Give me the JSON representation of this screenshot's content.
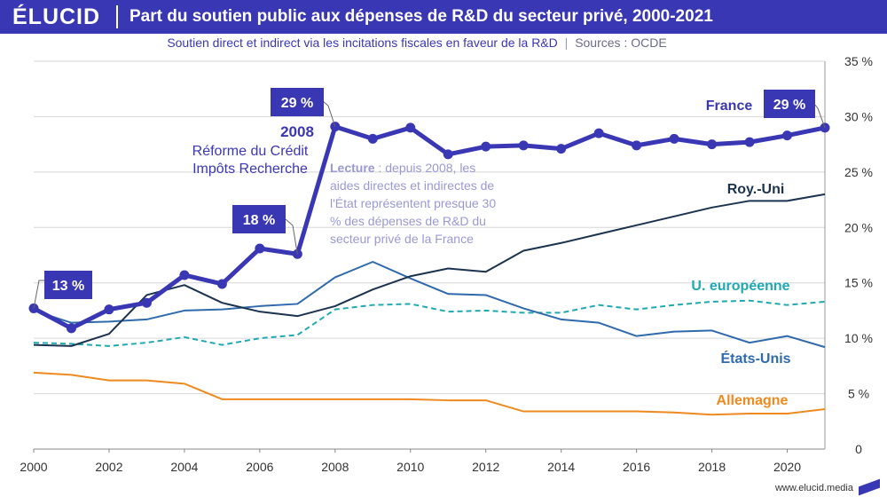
{
  "brand": {
    "logo_text": "ÉLUCID",
    "footer_url": "www.elucid.media",
    "accent": "#3a37b5"
  },
  "header": {
    "title": "Part du soutien public aux dépenses de R&D du secteur privé, 2000-2021",
    "subtitle": "Soutien direct et indirect via les incitations fiscales en faveur de la R&D",
    "separator": "|",
    "source": "Sources : OCDE"
  },
  "chart_data": {
    "type": "line",
    "title": "Part du soutien public aux dépenses de R&D du secteur privé, 2000-2021",
    "xlabel": "",
    "ylabel": "",
    "xlim": [
      2000,
      2021
    ],
    "ylim": [
      0,
      35
    ],
    "x_ticks": [
      "2000",
      "2002",
      "2004",
      "2006",
      "2008",
      "2010",
      "2012",
      "2014",
      "2016",
      "2018",
      "2020"
    ],
    "y_ticks": [
      "0",
      "5 %",
      "10 %",
      "15 %",
      "20 %",
      "25 %",
      "30 %",
      "35 %"
    ],
    "x": [
      2000,
      2001,
      2002,
      2003,
      2004,
      2005,
      2006,
      2007,
      2008,
      2009,
      2010,
      2011,
      2012,
      2013,
      2014,
      2015,
      2016,
      2017,
      2018,
      2019,
      2020,
      2021
    ],
    "series": [
      {
        "name": "France",
        "color": "#3a37b5",
        "style": "bold-markers",
        "values": [
          12.7,
          10.9,
          12.6,
          13.2,
          15.7,
          14.9,
          18.1,
          17.6,
          29.1,
          28.0,
          29.0,
          26.6,
          27.3,
          27.4,
          27.1,
          28.5,
          27.4,
          28.0,
          27.5,
          27.7,
          28.3,
          29.0
        ]
      },
      {
        "name": "Roy.-Uni",
        "color": "#1c3350",
        "style": "solid",
        "values": [
          9.4,
          9.3,
          10.4,
          13.9,
          14.8,
          13.2,
          12.4,
          12.0,
          12.9,
          14.4,
          15.6,
          16.3,
          16.0,
          17.9,
          18.6,
          19.4,
          20.2,
          21.0,
          21.8,
          22.4,
          22.4,
          23.0
        ]
      },
      {
        "name": "États-Unis",
        "color": "#2f6aad",
        "style": "solid",
        "values": [
          12.5,
          11.4,
          11.5,
          11.7,
          12.5,
          12.6,
          12.9,
          13.1,
          15.5,
          16.9,
          15.4,
          14.0,
          13.9,
          12.7,
          11.7,
          11.4,
          10.2,
          10.6,
          10.7,
          9.6,
          10.2,
          9.2
        ]
      },
      {
        "name": "U. européenne",
        "color": "#1fa9b5",
        "style": "dashed",
        "values": [
          9.6,
          9.5,
          9.3,
          9.6,
          10.1,
          9.4,
          10.0,
          10.3,
          12.6,
          13.0,
          13.1,
          12.4,
          12.5,
          12.3,
          12.3,
          13.0,
          12.6,
          13.0,
          13.3,
          13.4,
          13.0,
          13.3
        ]
      },
      {
        "name": "Allemagne",
        "color": "#ee8a1f",
        "style": "solid",
        "values": [
          6.9,
          6.7,
          6.2,
          6.2,
          5.9,
          4.5,
          4.5,
          4.5,
          4.5,
          4.5,
          4.5,
          4.4,
          4.4,
          3.4,
          3.4,
          3.4,
          3.4,
          3.3,
          3.1,
          3.2,
          3.2,
          3.6
        ]
      }
    ],
    "annotations": {
      "box_13": "13 %",
      "box_18": "18 %",
      "box_29_2008": "29 %",
      "box_29_2021": "29 %",
      "year_2008": "2008",
      "reform_line1": "Réforme du Crédit",
      "reform_line2": "Impôts Recherche",
      "lecture_bold": "Lecture",
      "lecture_line1": " : depuis 2008, les",
      "lecture_line2": "aides directes et indirectes de",
      "lecture_line3": "l'État représentent presque 30",
      "lecture_line4": "% des dépenses de R&D du",
      "lecture_line5": "secteur privé de la France"
    }
  }
}
